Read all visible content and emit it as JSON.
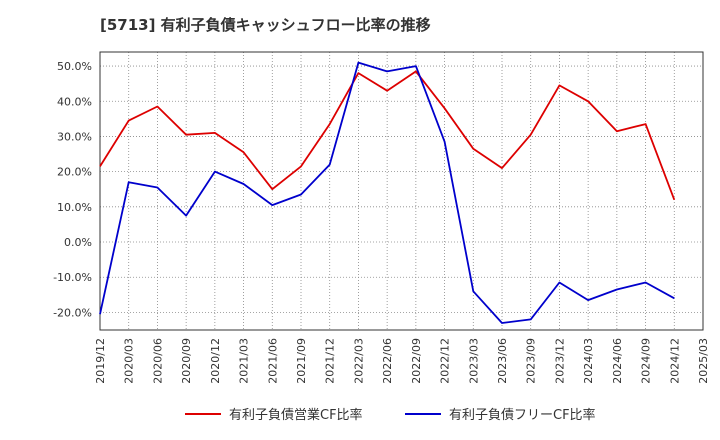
{
  "chart_data": {
    "type": "line",
    "title": "[5713]  有利子負債キャッシュフロー比率の推移",
    "xlabel": "",
    "ylabel": "",
    "x": [
      "2019/12",
      "2020/03",
      "2020/06",
      "2020/09",
      "2020/12",
      "2021/03",
      "2021/06",
      "2021/09",
      "2021/12",
      "2022/03",
      "2022/06",
      "2022/09",
      "2022/12",
      "2023/03",
      "2023/06",
      "2023/09",
      "2023/12",
      "2024/03",
      "2024/06",
      "2024/09",
      "2024/12",
      "2025/03"
    ],
    "y_ticks": [
      "50.0%",
      "40.0%",
      "30.0%",
      "20.0%",
      "10.0%",
      "0.0%",
      "-10.0%",
      "-20.0%"
    ],
    "y_tick_values": [
      50,
      40,
      30,
      20,
      10,
      0,
      -10,
      -20
    ],
    "ylim": [
      -25,
      54
    ],
    "grid": true,
    "legend_position": "bottom",
    "series": [
      {
        "name": "有利子負債営業CF比率",
        "color": "#dd0000",
        "values": [
          21.5,
          34.5,
          38.5,
          30.5,
          31.0,
          25.5,
          15.0,
          21.5,
          33.5,
          48.0,
          43.0,
          48.5,
          38.0,
          26.5,
          21.0,
          30.5,
          44.5,
          40.0,
          31.5,
          33.5,
          12.0,
          null
        ]
      },
      {
        "name": "有利子負債フリーCF比率",
        "color": "#0000cc",
        "values": [
          -20.5,
          17.0,
          15.5,
          7.5,
          20.0,
          16.5,
          10.5,
          13.5,
          22.0,
          51.0,
          48.5,
          50.0,
          28.5,
          -14.0,
          -23.0,
          -22.0,
          -11.5,
          -16.5,
          -13.5,
          -11.5,
          -16.0,
          null
        ]
      }
    ]
  }
}
